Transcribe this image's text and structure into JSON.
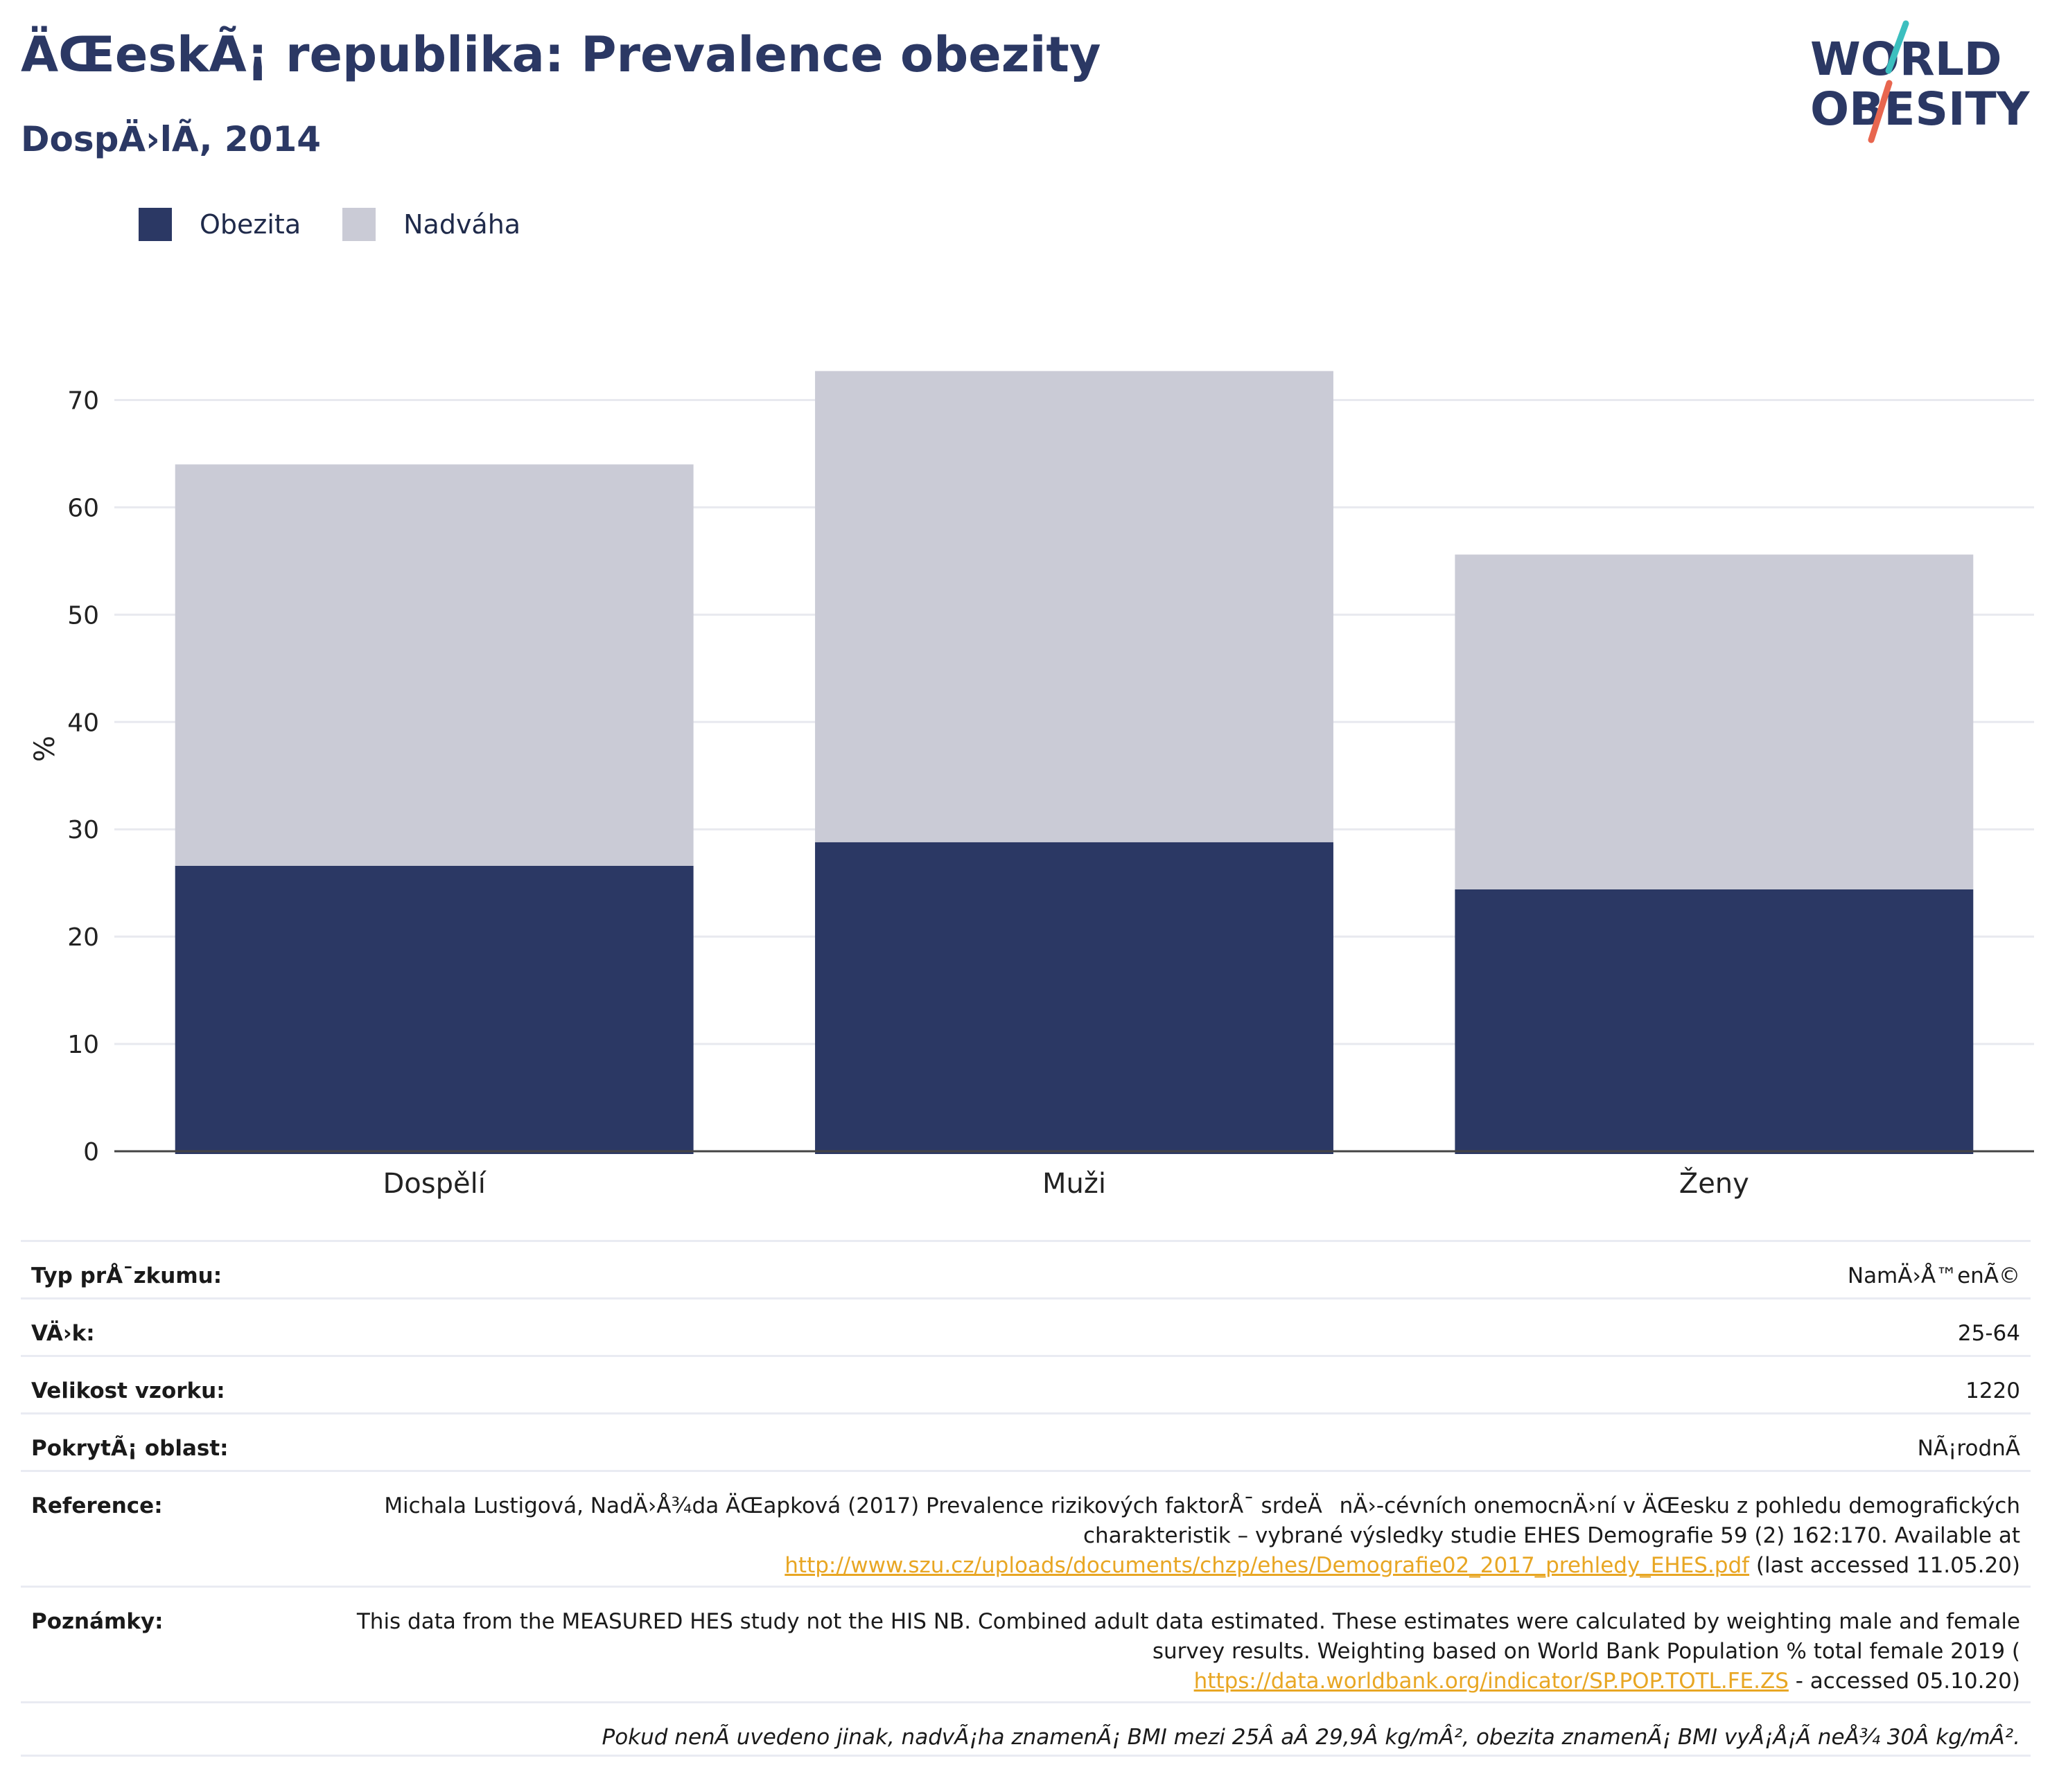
{
  "header": {
    "title": "ÄŒeskÃ¡ republika: Prevalence obezity",
    "subtitle": "DospÄ›lÃ­, 2014"
  },
  "logo": {
    "line1": "WORLD",
    "line2": "OBESITY",
    "accent": "#e8664f",
    "accent2": "#3cbfbf"
  },
  "legend": [
    {
      "label": "Obezita",
      "color": "#2b3864"
    },
    {
      "label": "Nadváha",
      "color": "#cacbd6"
    }
  ],
  "chart_data": {
    "type": "bar",
    "stacked": true,
    "categories": [
      "Dospělí",
      "Muži",
      "Ženy"
    ],
    "series": [
      {
        "name": "Obezita",
        "color": "#2b3864",
        "values": [
          26.6,
          28.8,
          24.4
        ]
      },
      {
        "name": "Nadváha",
        "color": "#cacbd6",
        "values": [
          37.4,
          43.9,
          31.2
        ]
      }
    ],
    "ylabel": "%",
    "ylim": [
      0,
      75
    ],
    "yticks": [
      0,
      10,
      20,
      30,
      40,
      50,
      60,
      70
    ],
    "grid": true,
    "legend_position": "top-left"
  },
  "info": {
    "survey_type": {
      "label": "Typ prÅ¯zkumu:",
      "value": "NamÄ›Å™enÃ©"
    },
    "age": {
      "label": "VÄ›k:",
      "value": "25-64"
    },
    "sample_size": {
      "label": "Velikost vzorku:",
      "value": "1220"
    },
    "coverage": {
      "label": "PokrytÃ¡ oblast:",
      "value": "NÃ¡rodnÃ"
    },
    "reference": {
      "label": "Reference:",
      "text1": "Michala Lustigová, NadÄ›Å¾da ÄŒapková (2017) Prevalence rizikových faktorÅ¯ srdeÄnÄ›-cévních onemocnÄ›ní v ÄŒesku z pohledu demografických charakteristik – vybrané výsledky studie EHES Demografie 59 (2) 162:170. Available at",
      "link": "http://www.szu.cz/uploads/documents/chzp/ehes/Demografie02_2017_prehledy_EHES.pdf",
      "text2": " (last accessed 11.05.20)"
    },
    "notes": {
      "label": "Poznámky:",
      "text1": "This data from the MEASURED HES study not the HIS NB. Combined adult data estimated. These estimates were calculated by weighting male and female survey results. Weighting based on World Bank Population % total female 2019 (",
      "link": "https://data.worldbank.org/indicator/SP.POP.TOTL.FE.ZS",
      "text2": " - accessed 05.10.20)"
    },
    "footnote": "Pokud nenÃ uvedeno jinak, nadvÃ¡ha znamenÃ¡ BMI mezi 25Â aÂ 29,9Â kg/mÂ², obezita znamenÃ¡ BMI vyÅ¡Å¡Ã neÅ¾ 30Â kg/mÂ²."
  }
}
